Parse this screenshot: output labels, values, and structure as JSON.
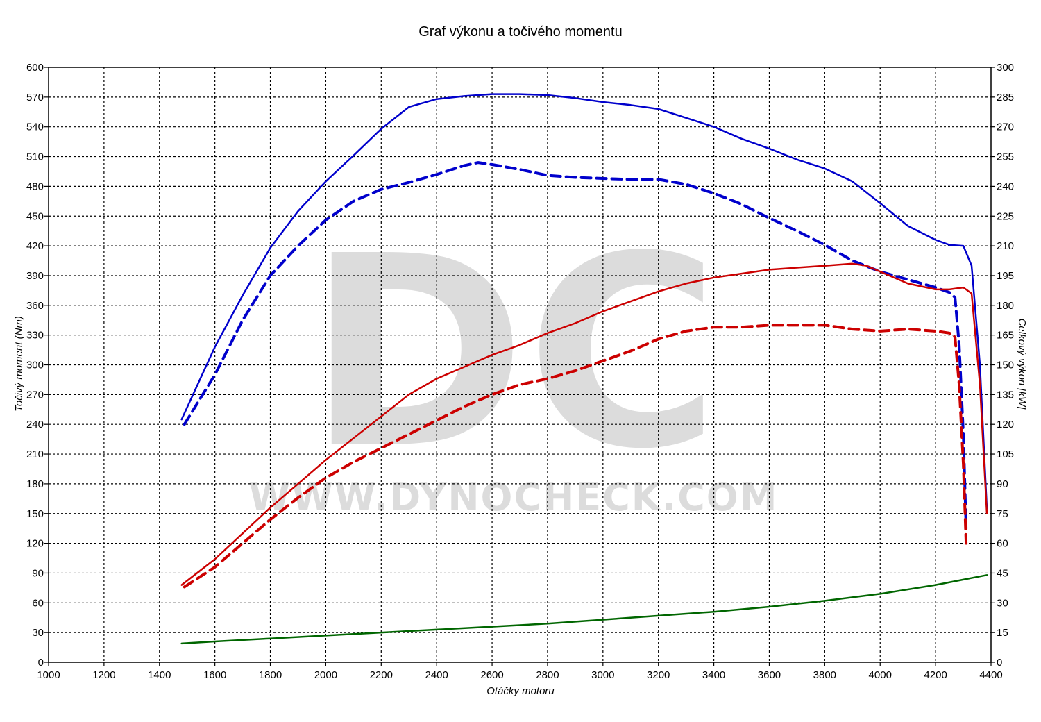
{
  "chart_data": {
    "type": "line",
    "title": "Graf výkonu a točivého momentu",
    "xlabel": "Otáčky motoru",
    "ylabel_left": "Točivý moment (Nm)",
    "ylabel_right": "Celkový výkon [kW]",
    "xlim": [
      1000,
      4400
    ],
    "ylim_left": [
      0,
      600
    ],
    "ylim_right": [
      0,
      300
    ],
    "x_ticks": [
      1000,
      1200,
      1400,
      1600,
      1800,
      2000,
      2200,
      2400,
      2600,
      2800,
      3000,
      3200,
      3400,
      3600,
      3800,
      4000,
      4200,
      4400
    ],
    "y_ticks_left": [
      0,
      30,
      60,
      90,
      120,
      150,
      180,
      210,
      240,
      270,
      300,
      330,
      360,
      390,
      420,
      450,
      480,
      510,
      540,
      570,
      600
    ],
    "y_ticks_right": [
      0,
      15,
      30,
      45,
      60,
      75,
      90,
      105,
      120,
      135,
      150,
      165,
      180,
      195,
      210,
      225,
      240,
      255,
      270,
      285,
      300
    ],
    "grid": true,
    "watermark": {
      "logo": "DC",
      "url": "WWW.DYNOCHECK.COM"
    },
    "colors": {
      "torque": "#0000cc",
      "power": "#cc0000",
      "loss": "#006600",
      "grid": "#000000",
      "watermark": "#dcdcdc"
    },
    "series": [
      {
        "color": "#0000cc",
        "dash": "solid",
        "axis": "left",
        "x": [
          1480,
          1600,
          1700,
          1800,
          1900,
          2000,
          2100,
          2200,
          2300,
          2400,
          2500,
          2600,
          2700,
          2800,
          2900,
          3000,
          3100,
          3200,
          3300,
          3400,
          3500,
          3600,
          3700,
          3800,
          3900,
          4000,
          4100,
          4200,
          4250,
          4300,
          4330,
          4360,
          4385
        ],
        "y": [
          245,
          318,
          370,
          418,
          455,
          485,
          511,
          538,
          560,
          568,
          571,
          573,
          573,
          572,
          569,
          565,
          562,
          558,
          549,
          540,
          528,
          518,
          507,
          498,
          485,
          463,
          440,
          426,
          421,
          420,
          400,
          300,
          155
        ]
      },
      {
        "color": "#0000cc",
        "dash": "dashed",
        "axis": "left",
        "x": [
          1490,
          1600,
          1700,
          1800,
          1900,
          2000,
          2100,
          2200,
          2300,
          2400,
          2500,
          2550,
          2600,
          2700,
          2800,
          2900,
          3000,
          3100,
          3200,
          3300,
          3400,
          3500,
          3600,
          3700,
          3800,
          3900,
          4000,
          4100,
          4200,
          4250,
          4270,
          4285,
          4300,
          4310
        ],
        "y": [
          240,
          290,
          345,
          390,
          420,
          446,
          465,
          477,
          484,
          492,
          501,
          504,
          502,
          497,
          491,
          489,
          488,
          487,
          487,
          482,
          473,
          462,
          448,
          435,
          421,
          405,
          394,
          386,
          378,
          373,
          368,
          320,
          230,
          135
        ]
      },
      {
        "color": "#cc0000",
        "dash": "solid",
        "axis": "right",
        "x": [
          1480,
          1600,
          1700,
          1800,
          1900,
          2000,
          2100,
          2200,
          2300,
          2400,
          2500,
          2600,
          2700,
          2800,
          2900,
          3000,
          3100,
          3200,
          3300,
          3400,
          3500,
          3600,
          3700,
          3800,
          3900,
          3950,
          4000,
          4100,
          4200,
          4250,
          4300,
          4330,
          4360,
          4385
        ],
        "y": [
          39,
          52,
          65,
          78,
          90,
          102,
          113,
          124,
          135,
          143,
          149,
          155,
          160,
          166,
          171,
          177,
          182,
          187,
          191,
          194,
          196,
          198,
          199,
          200,
          201,
          200,
          197,
          191,
          188,
          188,
          189,
          186,
          140,
          75
        ]
      },
      {
        "color": "#cc0000",
        "dash": "dashed",
        "axis": "right",
        "x": [
          1490,
          1600,
          1700,
          1800,
          1900,
          2000,
          2100,
          2200,
          2300,
          2400,
          2500,
          2600,
          2700,
          2800,
          2900,
          3000,
          3100,
          3200,
          3300,
          3400,
          3500,
          3600,
          3700,
          3800,
          3900,
          4000,
          4100,
          4200,
          4250,
          4270,
          4285,
          4300,
          4310
        ],
        "y": [
          38,
          48,
          60,
          72,
          83,
          93,
          101,
          108,
          115,
          122,
          129,
          135,
          140,
          143,
          147,
          152,
          157,
          163,
          167,
          169,
          169,
          170,
          170,
          170,
          168,
          167,
          168,
          167,
          166,
          164,
          140,
          100,
          60
        ]
      },
      {
        "color": "#006600",
        "dash": "solid",
        "axis": "right",
        "x": [
          1480,
          1600,
          1800,
          2000,
          2200,
          2400,
          2600,
          2800,
          3000,
          3200,
          3400,
          3600,
          3800,
          4000,
          4200,
          4385
        ],
        "y": [
          9.5,
          10.5,
          12,
          13.5,
          15,
          16.5,
          18,
          19.5,
          21.5,
          23.5,
          25.5,
          28,
          31,
          34.5,
          39,
          44
        ]
      }
    ]
  }
}
